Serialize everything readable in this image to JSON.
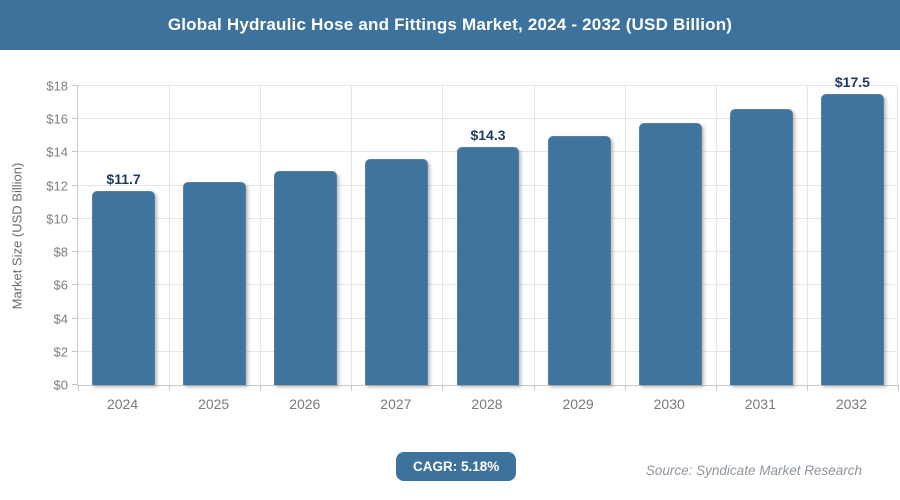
{
  "header": {
    "title": "Global Hydraulic Hose and Fittings Market, 2024 - 2032 (USD Billion)"
  },
  "chart_data": {
    "type": "bar",
    "title": "Global Hydraulic Hose and Fittings Market, 2024 - 2032 (USD Billion)",
    "categories": [
      "2024",
      "2025",
      "2026",
      "2027",
      "2028",
      "2029",
      "2030",
      "2031",
      "2032"
    ],
    "values": [
      11.7,
      12.2,
      12.9,
      13.6,
      14.3,
      15.0,
      15.8,
      16.6,
      17.5
    ],
    "bar_labels": [
      "$11.7",
      null,
      null,
      null,
      "$14.3",
      null,
      null,
      null,
      "$17.5"
    ],
    "xlabel": "",
    "ylabel": "Market Size (USD Billion)",
    "ylim": [
      0,
      18
    ],
    "ytick_step": 2,
    "ytick_labels": [
      "$0",
      "$2",
      "$4",
      "$6",
      "$8",
      "$10",
      "$12",
      "$14",
      "$16",
      "$18"
    ],
    "grid": true,
    "legend": "none",
    "bar_color": "#3e749e",
    "bar_label_color": "#1e3a5e"
  },
  "footer": {
    "cagr_label": "CAGR: 5.18%",
    "source": "Source: Syndicate Market Research"
  },
  "colors": {
    "accent": "#3c729b",
    "grid": "#e5e5e5",
    "axis": "#c9c9c9",
    "tick_text": "#808080"
  }
}
